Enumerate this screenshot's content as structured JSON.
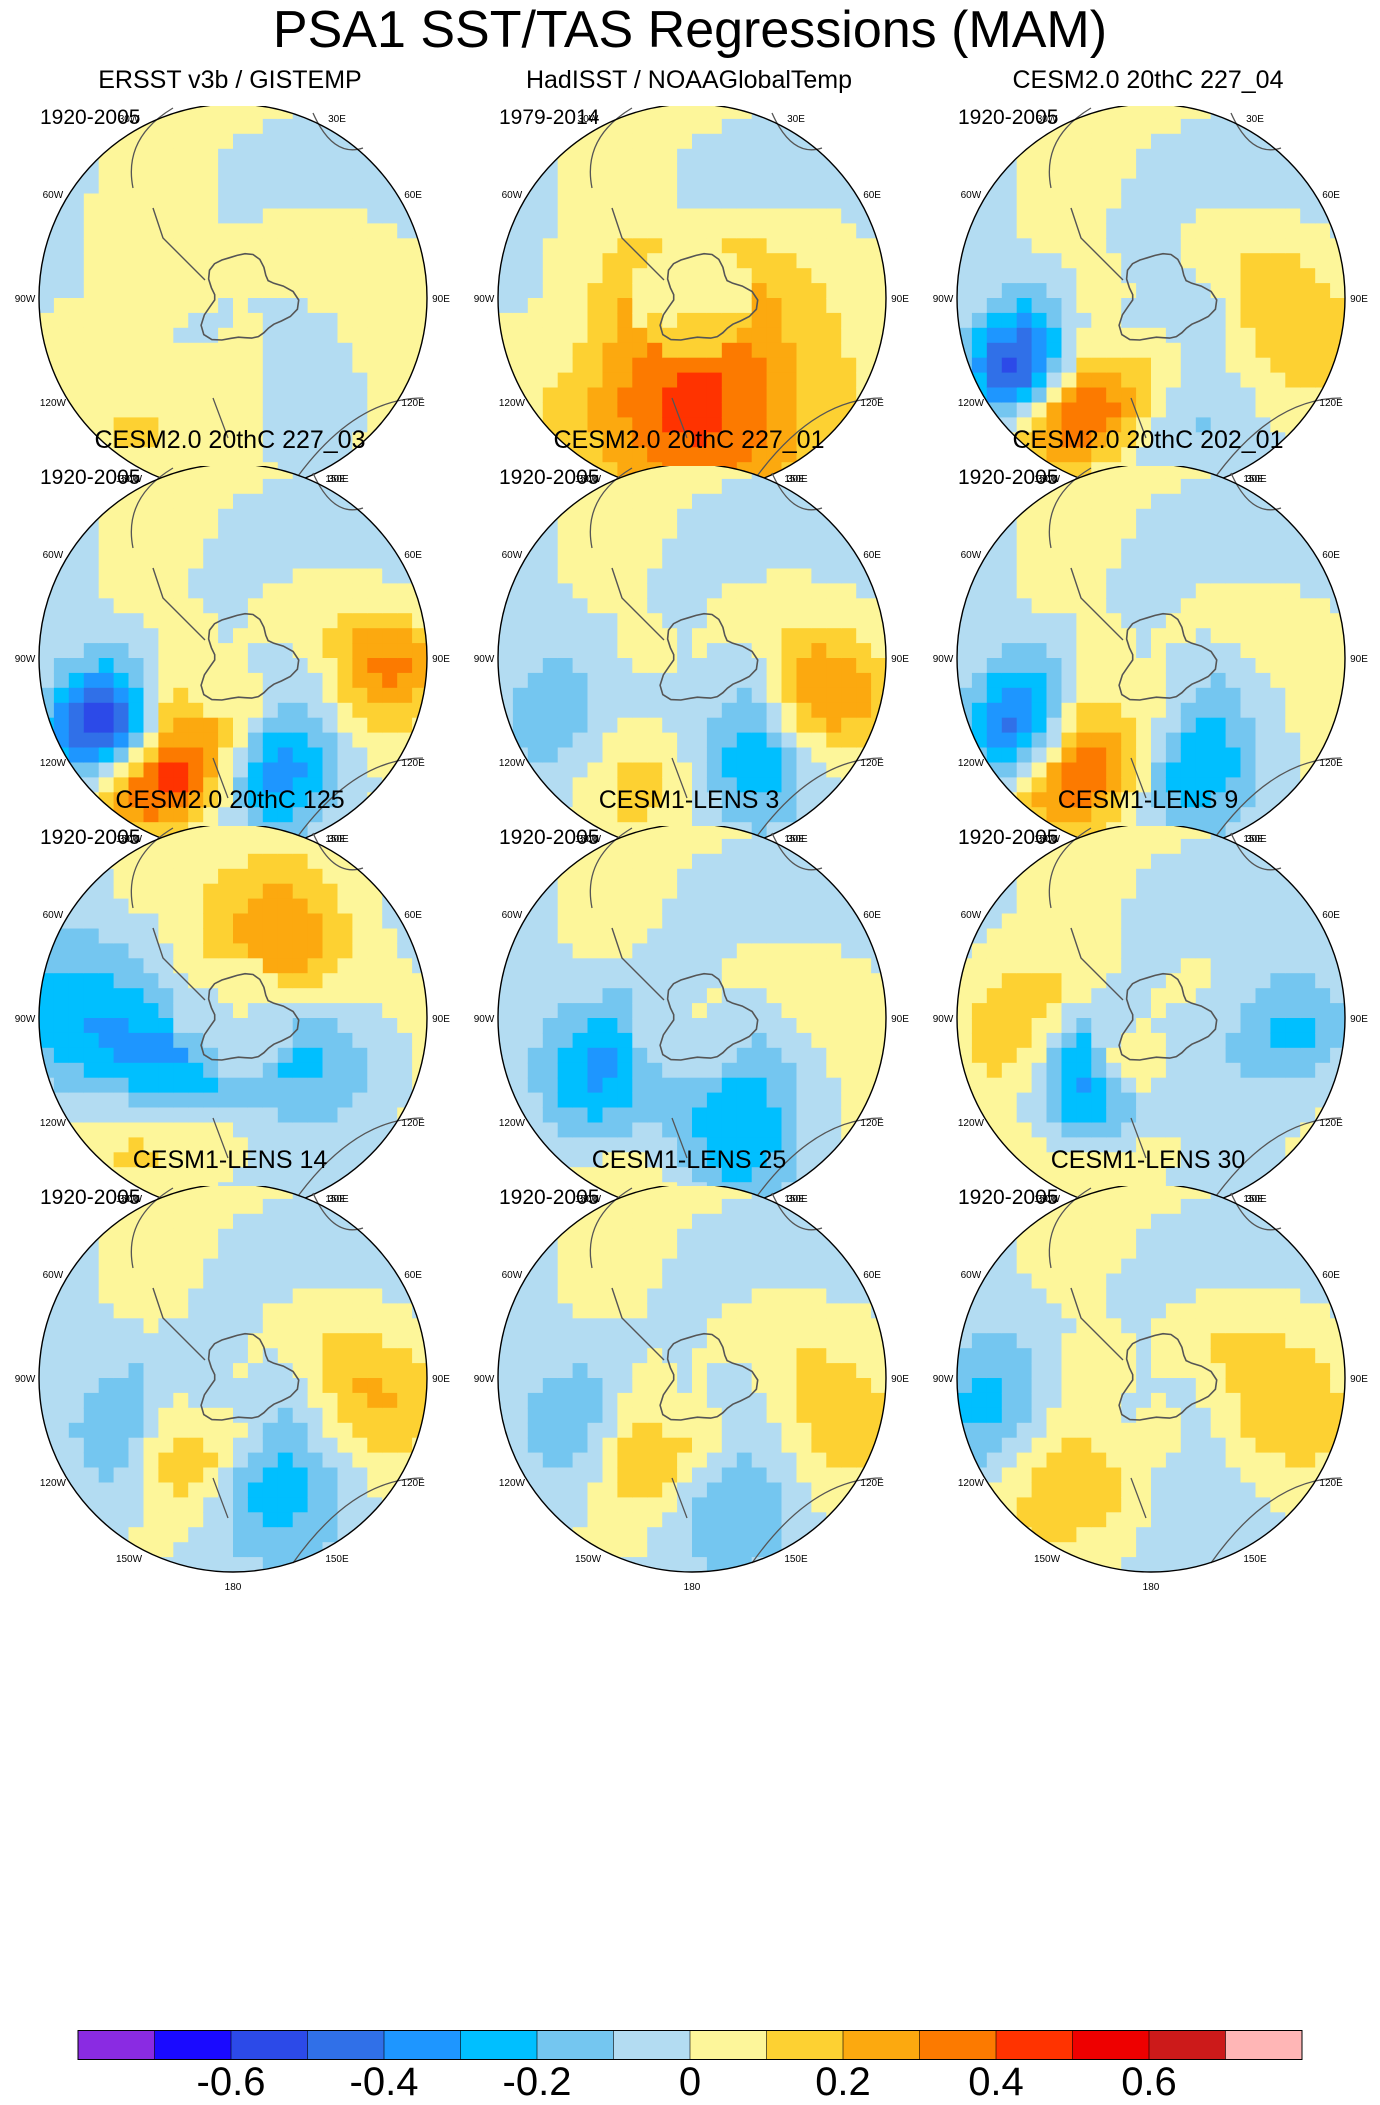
{
  "title": "PSA1 SST/TAS Regressions (MAM)",
  "longitude_labels": [
    "0",
    "30E",
    "60E",
    "90E",
    "120E",
    "150E",
    "180",
    "150W",
    "120W",
    "90W",
    "60W",
    "30W"
  ],
  "chart_data": {
    "type": "polar-stereographic filled contour maps (3x4 panel grid)",
    "projection": "South Polar Stereographic",
    "variable": "SST/TAS regression on PSA1 index",
    "season": "MAM",
    "colorbar": {
      "levels": [
        -0.7,
        -0.6,
        -0.5,
        -0.4,
        -0.3,
        -0.2,
        -0.1,
        0,
        0.1,
        0.2,
        0.3,
        0.4,
        0.5,
        0.6,
        0.7
      ],
      "tick_labels": [
        "-0.6",
        "-0.4",
        "-0.2",
        "0",
        "0.2",
        "0.4",
        "0.6"
      ],
      "tick_values": [
        -0.6,
        -0.4,
        -0.2,
        0,
        0.2,
        0.4,
        0.6
      ],
      "colors": [
        "#8a2be2",
        "#1a0aff",
        "#2c4ae8",
        "#3070e8",
        "#1e96ff",
        "#00bfff",
        "#74c6f0",
        "#b3dcf2",
        "#fdf69a",
        "#fdd132",
        "#fca90f",
        "#fc7a00",
        "#ff3300",
        "#ee0000",
        "#cc1a1a",
        "#ffb6b6"
      ]
    },
    "panels": [
      {
        "title": "ERSST v3b / GISTEMP",
        "period": "1920-2005",
        "features": [
          [
            0.18,
            0.35,
            0.1,
            0.7
          ],
          [
            -0.25,
            0.5,
            0.1,
            0.7
          ],
          [
            0.42,
            0.45,
            -0.1,
            0.5
          ],
          [
            0.05,
            0.25,
            -0.1,
            0.6
          ]
        ]
      },
      {
        "title": "HadISST / NOAAGlobalTemp",
        "period": "1979-2014",
        "features": [
          [
            0.4,
            0.45,
            0.2,
            0.6
          ],
          [
            -0.3,
            0.45,
            0.15,
            0.6
          ],
          [
            0.15,
            0.72,
            0.2,
            0.4
          ],
          [
            0.2,
            0.4,
            -0.1,
            0.6
          ]
        ]
      },
      {
        "title": "CESM2.0 20thC 227_04",
        "period": "1920-2005",
        "features": [
          [
            -0.65,
            0.5,
            0.5,
            0.25
          ],
          [
            -0.68,
            0.72,
            0.4,
            0.2
          ],
          [
            -0.9,
            0.62,
            -0.5,
            0.22
          ],
          [
            -1.1,
            0.8,
            -0.4,
            0.2
          ],
          [
            0.3,
            0.25,
            -0.2,
            0.4
          ],
          [
            1.3,
            0.65,
            0.2,
            0.3
          ]
        ]
      },
      {
        "title": "CESM2.0 20thC 227_03",
        "period": "1920-2005",
        "features": [
          [
            -0.65,
            0.48,
            0.5,
            0.25
          ],
          [
            -0.65,
            0.75,
            0.4,
            0.22
          ],
          [
            -0.9,
            0.62,
            -0.5,
            0.22
          ],
          [
            -1.1,
            0.8,
            -0.45,
            0.2
          ],
          [
            0.35,
            0.6,
            -0.35,
            0.22
          ],
          [
            1.5,
            0.8,
            0.3,
            0.2
          ]
        ]
      },
      {
        "title": "CESM2.0 20thC 227_01",
        "period": "1920-2005",
        "features": [
          [
            0.5,
            0.55,
            -0.3,
            0.25
          ],
          [
            -0.5,
            0.6,
            0.2,
            0.3
          ],
          [
            1.3,
            0.7,
            0.3,
            0.22
          ],
          [
            -1.0,
            0.75,
            -0.2,
            0.3
          ]
        ]
      },
      {
        "title": "CESM2.0 20thC 202_01",
        "period": "1920-2005",
        "features": [
          [
            -0.65,
            0.48,
            0.45,
            0.25
          ],
          [
            -0.65,
            0.75,
            0.35,
            0.22
          ],
          [
            -0.9,
            0.62,
            -0.4,
            0.25
          ],
          [
            0.35,
            0.55,
            -0.3,
            0.25
          ],
          [
            -1.1,
            0.8,
            -0.3,
            0.2
          ]
        ]
      },
      {
        "title": "CESM2.0 20thC 125",
        "period": "1920-2005",
        "features": [
          [
            -0.9,
            0.45,
            -0.3,
            0.28
          ],
          [
            -0.7,
            0.7,
            0.2,
            0.25
          ],
          [
            1.1,
            0.4,
            -0.2,
            0.3
          ],
          [
            2.7,
            0.5,
            0.3,
            0.3
          ],
          [
            -1.6,
            0.8,
            -0.25,
            0.3
          ]
        ]
      },
      {
        "title": "CESM1-LENS 3",
        "period": "1920-2005",
        "features": [
          [
            -0.9,
            0.5,
            -0.4,
            0.28
          ],
          [
            -0.55,
            0.3,
            0.3,
            0.2
          ],
          [
            0.3,
            0.6,
            -0.3,
            0.28
          ],
          [
            -0.3,
            0.75,
            0.1,
            0.3
          ]
        ]
      },
      {
        "title": "CESM1-LENS 9",
        "period": "1920-2005",
        "features": [
          [
            -0.7,
            0.45,
            -0.55,
            0.25
          ],
          [
            -0.45,
            0.25,
            0.45,
            0.15
          ],
          [
            -0.6,
            0.68,
            0.15,
            0.3
          ],
          [
            -1.5,
            0.7,
            0.2,
            0.25
          ],
          [
            1.5,
            0.75,
            -0.25,
            0.22
          ]
        ]
      },
      {
        "title": "CESM1-LENS 14",
        "period": "1920-2005",
        "features": [
          [
            -0.55,
            0.45,
            0.45,
            0.22
          ],
          [
            -0.9,
            0.55,
            -0.25,
            0.3
          ],
          [
            0.35,
            0.55,
            -0.25,
            0.3
          ],
          [
            1.4,
            0.7,
            0.2,
            0.25
          ]
        ]
      },
      {
        "title": "CESM1-LENS 25",
        "period": "1920-2005",
        "features": [
          [
            -0.55,
            0.45,
            0.4,
            0.22
          ],
          [
            0.3,
            0.6,
            -0.2,
            0.3
          ],
          [
            -1.0,
            0.6,
            -0.2,
            0.3
          ],
          [
            1.2,
            0.7,
            0.15,
            0.3
          ]
        ]
      },
      {
        "title": "CESM1-LENS 30",
        "period": "1920-2005",
        "features": [
          [
            -0.8,
            0.62,
            0.25,
            0.3
          ],
          [
            -1.3,
            0.85,
            -0.25,
            0.3
          ],
          [
            0.4,
            0.4,
            -0.15,
            0.3
          ],
          [
            1.3,
            0.6,
            0.2,
            0.3
          ]
        ]
      }
    ]
  }
}
